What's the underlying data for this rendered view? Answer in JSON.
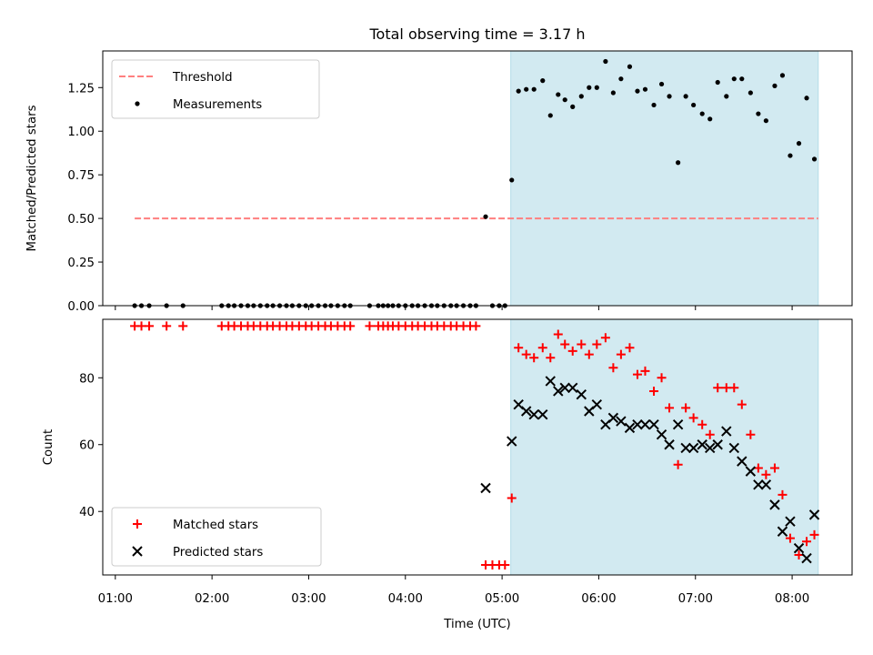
{
  "chart_data": {
    "title": "Total observing time = 3.17 h",
    "xlabel": "Time (UTC)",
    "x_unit": "hours UTC",
    "x_ticks": [
      "01:00",
      "02:00",
      "03:00",
      "04:00",
      "05:00",
      "06:00",
      "07:00",
      "08:00"
    ],
    "xlim": [
      0.87,
      8.62
    ],
    "shaded_interval": {
      "x": [
        5.09,
        8.27
      ],
      "color": "#add8e6"
    },
    "panels": [
      {
        "type": "scatter",
        "ylabel": "Matched/Predicted stars",
        "ylim": [
          0,
          1.46
        ],
        "y_ticks": [
          "0.00",
          "0.25",
          "0.50",
          "0.75",
          "1.00",
          "1.25"
        ],
        "legend_position": "top-left",
        "series": [
          {
            "name": "Threshold",
            "kind": "dashed-line",
            "color": "#ff7f7f",
            "points": [
              [
                1.2,
                0.5
              ],
              [
                8.27,
                0.5
              ]
            ]
          },
          {
            "name": "Measurements",
            "kind": "dot",
            "color": "#000000",
            "points": [
              [
                1.2,
                0
              ],
              [
                1.27,
                0
              ],
              [
                1.35,
                0
              ],
              [
                1.53,
                0
              ],
              [
                1.7,
                0
              ],
              [
                2.1,
                0
              ],
              [
                2.17,
                0
              ],
              [
                2.23,
                0
              ],
              [
                2.3,
                0
              ],
              [
                2.37,
                0
              ],
              [
                2.43,
                0
              ],
              [
                2.5,
                0
              ],
              [
                2.57,
                0
              ],
              [
                2.63,
                0
              ],
              [
                2.7,
                0
              ],
              [
                2.77,
                0
              ],
              [
                2.83,
                0
              ],
              [
                2.9,
                0
              ],
              [
                2.97,
                0
              ],
              [
                3.03,
                0
              ],
              [
                3.1,
                0
              ],
              [
                3.17,
                0
              ],
              [
                3.23,
                0
              ],
              [
                3.3,
                0
              ],
              [
                3.37,
                0
              ],
              [
                3.43,
                0
              ],
              [
                3.63,
                0
              ],
              [
                3.72,
                0
              ],
              [
                3.77,
                0
              ],
              [
                3.82,
                0
              ],
              [
                3.87,
                0
              ],
              [
                3.93,
                0
              ],
              [
                4.0,
                0
              ],
              [
                4.07,
                0
              ],
              [
                4.13,
                0
              ],
              [
                4.2,
                0
              ],
              [
                4.27,
                0
              ],
              [
                4.33,
                0
              ],
              [
                4.4,
                0
              ],
              [
                4.47,
                0
              ],
              [
                4.53,
                0
              ],
              [
                4.6,
                0
              ],
              [
                4.67,
                0
              ],
              [
                4.73,
                0
              ],
              [
                4.83,
                0.51
              ],
              [
                4.9,
                0
              ],
              [
                4.97,
                0
              ],
              [
                5.03,
                0
              ],
              [
                5.1,
                0.72
              ],
              [
                5.17,
                1.23
              ],
              [
                5.25,
                1.24
              ],
              [
                5.33,
                1.24
              ],
              [
                5.42,
                1.29
              ],
              [
                5.5,
                1.09
              ],
              [
                5.58,
                1.21
              ],
              [
                5.65,
                1.18
              ],
              [
                5.73,
                1.14
              ],
              [
                5.82,
                1.2
              ],
              [
                5.9,
                1.25
              ],
              [
                5.98,
                1.25
              ],
              [
                6.07,
                1.4
              ],
              [
                6.15,
                1.22
              ],
              [
                6.23,
                1.3
              ],
              [
                6.32,
                1.37
              ],
              [
                6.4,
                1.23
              ],
              [
                6.48,
                1.24
              ],
              [
                6.57,
                1.15
              ],
              [
                6.65,
                1.27
              ],
              [
                6.73,
                1.2
              ],
              [
                6.82,
                0.82
              ],
              [
                6.9,
                1.2
              ],
              [
                6.98,
                1.15
              ],
              [
                7.07,
                1.1
              ],
              [
                7.15,
                1.07
              ],
              [
                7.23,
                1.28
              ],
              [
                7.32,
                1.2
              ],
              [
                7.4,
                1.3
              ],
              [
                7.48,
                1.3
              ],
              [
                7.57,
                1.22
              ],
              [
                7.65,
                1.1
              ],
              [
                7.73,
                1.06
              ],
              [
                7.82,
                1.26
              ],
              [
                7.9,
                1.32
              ],
              [
                7.98,
                0.86
              ],
              [
                8.07,
                0.93
              ],
              [
                8.15,
                1.19
              ],
              [
                8.23,
                0.84
              ]
            ]
          }
        ]
      },
      {
        "type": "scatter",
        "ylabel": "Count",
        "ylim": [
          21,
          97.5
        ],
        "y_ticks": [
          "40",
          "60",
          "80"
        ],
        "legend_position": "bottom-left",
        "series": [
          {
            "name": "Matched stars",
            "kind": "plus",
            "color": "#ff0000",
            "points": [
              [
                1.2,
                95.5
              ],
              [
                1.27,
                95.5
              ],
              [
                1.35,
                95.5
              ],
              [
                1.53,
                95.5
              ],
              [
                1.7,
                95.5
              ],
              [
                2.1,
                95.5
              ],
              [
                2.17,
                95.5
              ],
              [
                2.23,
                95.5
              ],
              [
                2.3,
                95.5
              ],
              [
                2.37,
                95.5
              ],
              [
                2.43,
                95.5
              ],
              [
                2.5,
                95.5
              ],
              [
                2.57,
                95.5
              ],
              [
                2.63,
                95.5
              ],
              [
                2.7,
                95.5
              ],
              [
                2.77,
                95.5
              ],
              [
                2.83,
                95.5
              ],
              [
                2.9,
                95.5
              ],
              [
                2.97,
                95.5
              ],
              [
                3.03,
                95.5
              ],
              [
                3.1,
                95.5
              ],
              [
                3.17,
                95.5
              ],
              [
                3.23,
                95.5
              ],
              [
                3.3,
                95.5
              ],
              [
                3.37,
                95.5
              ],
              [
                3.43,
                95.5
              ],
              [
                3.63,
                95.5
              ],
              [
                3.72,
                95.5
              ],
              [
                3.77,
                95.5
              ],
              [
                3.82,
                95.5
              ],
              [
                3.87,
                95.5
              ],
              [
                3.93,
                95.5
              ],
              [
                4.0,
                95.5
              ],
              [
                4.07,
                95.5
              ],
              [
                4.13,
                95.5
              ],
              [
                4.2,
                95.5
              ],
              [
                4.27,
                95.5
              ],
              [
                4.33,
                95.5
              ],
              [
                4.4,
                95.5
              ],
              [
                4.47,
                95.5
              ],
              [
                4.53,
                95.5
              ],
              [
                4.6,
                95.5
              ],
              [
                4.67,
                95.5
              ],
              [
                4.73,
                95.5
              ],
              [
                4.83,
                24
              ],
              [
                4.9,
                24
              ],
              [
                4.97,
                24
              ],
              [
                5.03,
                24
              ],
              [
                5.1,
                44
              ],
              [
                5.17,
                89
              ],
              [
                5.25,
                87
              ],
              [
                5.33,
                86
              ],
              [
                5.42,
                89
              ],
              [
                5.5,
                86
              ],
              [
                5.58,
                93
              ],
              [
                5.65,
                90
              ],
              [
                5.73,
                88
              ],
              [
                5.82,
                90
              ],
              [
                5.9,
                87
              ],
              [
                5.98,
                90
              ],
              [
                6.07,
                92
              ],
              [
                6.15,
                83
              ],
              [
                6.23,
                87
              ],
              [
                6.32,
                89
              ],
              [
                6.4,
                81
              ],
              [
                6.48,
                82
              ],
              [
                6.57,
                76
              ],
              [
                6.65,
                80
              ],
              [
                6.73,
                71
              ],
              [
                6.82,
                54
              ],
              [
                6.9,
                71
              ],
              [
                6.98,
                68
              ],
              [
                7.07,
                66
              ],
              [
                7.15,
                63
              ],
              [
                7.23,
                77
              ],
              [
                7.32,
                77
              ],
              [
                7.4,
                77
              ],
              [
                7.48,
                72
              ],
              [
                7.57,
                63
              ],
              [
                7.65,
                53
              ],
              [
                7.73,
                51
              ],
              [
                7.82,
                53
              ],
              [
                7.9,
                45
              ],
              [
                7.98,
                32
              ],
              [
                8.07,
                27
              ],
              [
                8.15,
                31
              ],
              [
                8.23,
                33
              ]
            ]
          },
          {
            "name": "Predicted stars",
            "kind": "x",
            "color": "#000000",
            "points": [
              [
                4.83,
                47
              ],
              [
                5.1,
                61
              ],
              [
                5.17,
                72
              ],
              [
                5.25,
                70
              ],
              [
                5.33,
                69
              ],
              [
                5.42,
                69
              ],
              [
                5.5,
                79
              ],
              [
                5.58,
                76
              ],
              [
                5.65,
                77
              ],
              [
                5.73,
                77
              ],
              [
                5.82,
                75
              ],
              [
                5.9,
                70
              ],
              [
                5.98,
                72
              ],
              [
                6.07,
                66
              ],
              [
                6.15,
                68
              ],
              [
                6.23,
                67
              ],
              [
                6.32,
                65
              ],
              [
                6.4,
                66
              ],
              [
                6.48,
                66
              ],
              [
                6.57,
                66
              ],
              [
                6.65,
                63
              ],
              [
                6.73,
                60
              ],
              [
                6.82,
                66
              ],
              [
                6.9,
                59
              ],
              [
                6.98,
                59
              ],
              [
                7.07,
                60
              ],
              [
                7.15,
                59
              ],
              [
                7.23,
                60
              ],
              [
                7.32,
                64
              ],
              [
                7.4,
                59
              ],
              [
                7.48,
                55
              ],
              [
                7.57,
                52
              ],
              [
                7.65,
                48
              ],
              [
                7.73,
                48
              ],
              [
                7.82,
                42
              ],
              [
                7.9,
                34
              ],
              [
                7.98,
                37
              ],
              [
                8.07,
                29
              ],
              [
                8.15,
                26
              ],
              [
                8.23,
                39
              ]
            ]
          }
        ]
      }
    ]
  }
}
